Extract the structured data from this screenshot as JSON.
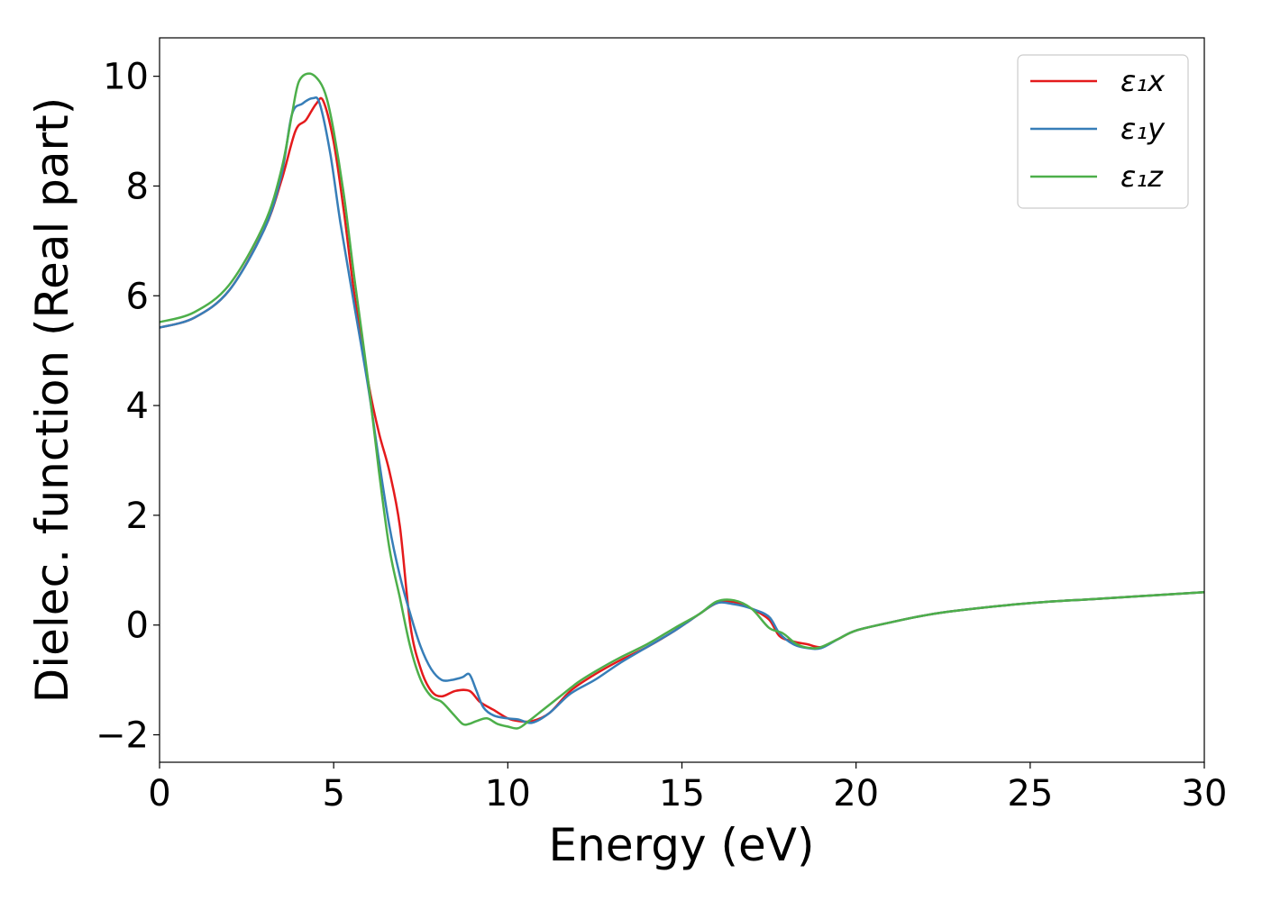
{
  "chart_data": {
    "type": "line",
    "xlabel": "Energy (eV)",
    "ylabel": "Dielec. function (Real part)",
    "xlim": [
      0,
      30
    ],
    "ylim": [
      -2.5,
      10.7
    ],
    "xticks": [
      0,
      5,
      10,
      15,
      20,
      25,
      30
    ],
    "xtick_labels": [
      "0",
      "5",
      "10",
      "15",
      "20",
      "25",
      "30"
    ],
    "yticks": [
      -2,
      0,
      2,
      4,
      6,
      8,
      10
    ],
    "ytick_labels": [
      "−2",
      "0",
      "2",
      "4",
      "6",
      "8",
      "10"
    ],
    "legend_position": "top-right",
    "grid": false,
    "series": [
      {
        "name": "ε₁x",
        "color": "#e41a1c",
        "x": [
          0,
          1,
          2,
          3,
          3.5,
          3.9,
          4.2,
          4.5,
          4.7,
          5.0,
          5.3,
          5.6,
          6.0,
          6.3,
          6.6,
          6.9,
          7.2,
          7.5,
          7.8,
          8.1,
          8.5,
          8.9,
          9.2,
          9.6,
          10.0,
          10.3,
          10.7,
          11.2,
          11.8,
          12.5,
          13.2,
          14.0,
          14.8,
          15.5,
          16.0,
          16.5,
          17.0,
          17.5,
          17.8,
          18.2,
          18.6,
          19.0,
          19.5,
          20.0,
          21.0,
          22.0,
          23.0,
          25.0,
          27.0,
          30.0
        ],
        "values": [
          5.42,
          5.6,
          6.1,
          7.2,
          8.1,
          9.0,
          9.2,
          9.5,
          9.55,
          8.8,
          7.5,
          6.0,
          4.4,
          3.5,
          2.8,
          1.8,
          0.0,
          -0.8,
          -1.2,
          -1.3,
          -1.2,
          -1.2,
          -1.4,
          -1.55,
          -1.7,
          -1.75,
          -1.75,
          -1.6,
          -1.2,
          -0.9,
          -0.65,
          -0.4,
          -0.1,
          0.2,
          0.4,
          0.42,
          0.3,
          0.1,
          -0.2,
          -0.3,
          -0.35,
          -0.4,
          -0.25,
          -0.1,
          0.05,
          0.18,
          0.27,
          0.4,
          0.48,
          0.6
        ]
      },
      {
        "name": "ε₁y",
        "color": "#377eb8",
        "x": [
          0,
          1,
          2,
          3,
          3.5,
          3.8,
          4.1,
          4.4,
          4.6,
          4.9,
          5.2,
          5.6,
          6.0,
          6.3,
          6.6,
          6.9,
          7.2,
          7.5,
          7.8,
          8.1,
          8.4,
          8.7,
          8.9,
          9.1,
          9.3,
          9.6,
          10.0,
          10.3,
          10.7,
          11.2,
          11.8,
          12.5,
          13.2,
          14.0,
          14.8,
          15.5,
          16.0,
          16.5,
          17.0,
          17.5,
          17.8,
          18.2,
          18.6,
          19.0,
          19.5,
          20.0,
          21.0,
          22.0,
          23.0,
          25.0,
          27.0,
          30.0
        ],
        "values": [
          5.42,
          5.6,
          6.1,
          7.2,
          8.2,
          9.3,
          9.5,
          9.6,
          9.5,
          8.6,
          7.3,
          5.8,
          4.3,
          3.0,
          1.8,
          0.9,
          0.2,
          -0.4,
          -0.8,
          -1.0,
          -1.0,
          -0.95,
          -0.9,
          -1.2,
          -1.5,
          -1.65,
          -1.7,
          -1.72,
          -1.78,
          -1.6,
          -1.25,
          -1.0,
          -0.7,
          -0.4,
          -0.1,
          0.2,
          0.4,
          0.38,
          0.3,
          0.15,
          -0.15,
          -0.35,
          -0.42,
          -0.42,
          -0.25,
          -0.1,
          0.05,
          0.18,
          0.27,
          0.4,
          0.48,
          0.6
        ]
      },
      {
        "name": "ε₁z",
        "color": "#4daf4a",
        "x": [
          0,
          1,
          2,
          3,
          3.5,
          3.8,
          4.0,
          4.3,
          4.6,
          4.8,
          5.0,
          5.3,
          5.6,
          6.0,
          6.3,
          6.6,
          6.9,
          7.2,
          7.5,
          7.8,
          8.1,
          8.4,
          8.7,
          8.9,
          9.1,
          9.4,
          9.7,
          10.0,
          10.3,
          10.6,
          11.0,
          11.5,
          12.0,
          12.5,
          13.2,
          14.0,
          14.8,
          15.5,
          16.0,
          16.5,
          17.0,
          17.5,
          17.9,
          18.3,
          18.7,
          19.0,
          19.5,
          20.0,
          21.0,
          22.0,
          23.0,
          25.0,
          27.0,
          30.0
        ],
        "values": [
          5.52,
          5.7,
          6.2,
          7.3,
          8.3,
          9.3,
          9.9,
          10.05,
          9.9,
          9.6,
          9.0,
          7.8,
          6.3,
          4.4,
          2.8,
          1.4,
          0.5,
          -0.4,
          -1.0,
          -1.3,
          -1.4,
          -1.6,
          -1.8,
          -1.8,
          -1.75,
          -1.7,
          -1.8,
          -1.85,
          -1.88,
          -1.75,
          -1.55,
          -1.3,
          -1.05,
          -0.85,
          -0.6,
          -0.35,
          -0.05,
          0.2,
          0.43,
          0.45,
          0.3,
          -0.05,
          -0.15,
          -0.35,
          -0.42,
          -0.4,
          -0.25,
          -0.1,
          0.05,
          0.18,
          0.27,
          0.4,
          0.48,
          0.6
        ]
      }
    ]
  }
}
